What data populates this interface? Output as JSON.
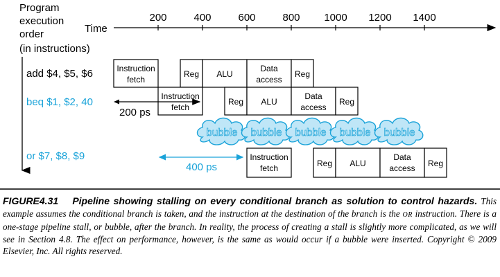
{
  "axis": {
    "y_title_lines": [
      "Program",
      "execution",
      "order",
      "(in instructions)"
    ],
    "time_label": "Time",
    "ticks": [
      "200",
      "400",
      "600",
      "800",
      "1000",
      "1200",
      "1400"
    ]
  },
  "instructions": [
    {
      "text": "add $4, $5, $6",
      "color": "#000000"
    },
    {
      "text": "beq $1, $2, 40",
      "color": "#1aa3d9"
    },
    {
      "text": "or $7, $8, $9",
      "color": "#1aa3d9"
    }
  ],
  "stages": {
    "if_line1": "Instruction",
    "if_line2": "fetch",
    "reg": "Reg",
    "alu": "ALU",
    "mem_line1": "Data",
    "mem_line2": "access"
  },
  "bubble_label": "bubble",
  "intervals": [
    "200 ps",
    "400 ps"
  ],
  "colors": {
    "accent": "#1aa3d9",
    "bubble_fill": "#bfe6f7"
  },
  "caption": {
    "figure_number": "FIGURE4.31",
    "figure_title": "Pipeline showing stalling on every conditional branch as solution to control hazards.",
    "text_before_or": "This example assumes the conditional branch is taken, and the instruction at the destination of the branch is the ",
    "or_word": "OR",
    "text_after_or": " instruction. There is a one-stage pipeline stall, or bubble, after the branch. In reality, the process of creating a stall is slightly more complicated, as we will see in Section 4.8. The effect on performance, however, is the same as would occur if a bubble were inserted. Copyright © 2009 Elsevier, Inc. All rights reserved."
  }
}
